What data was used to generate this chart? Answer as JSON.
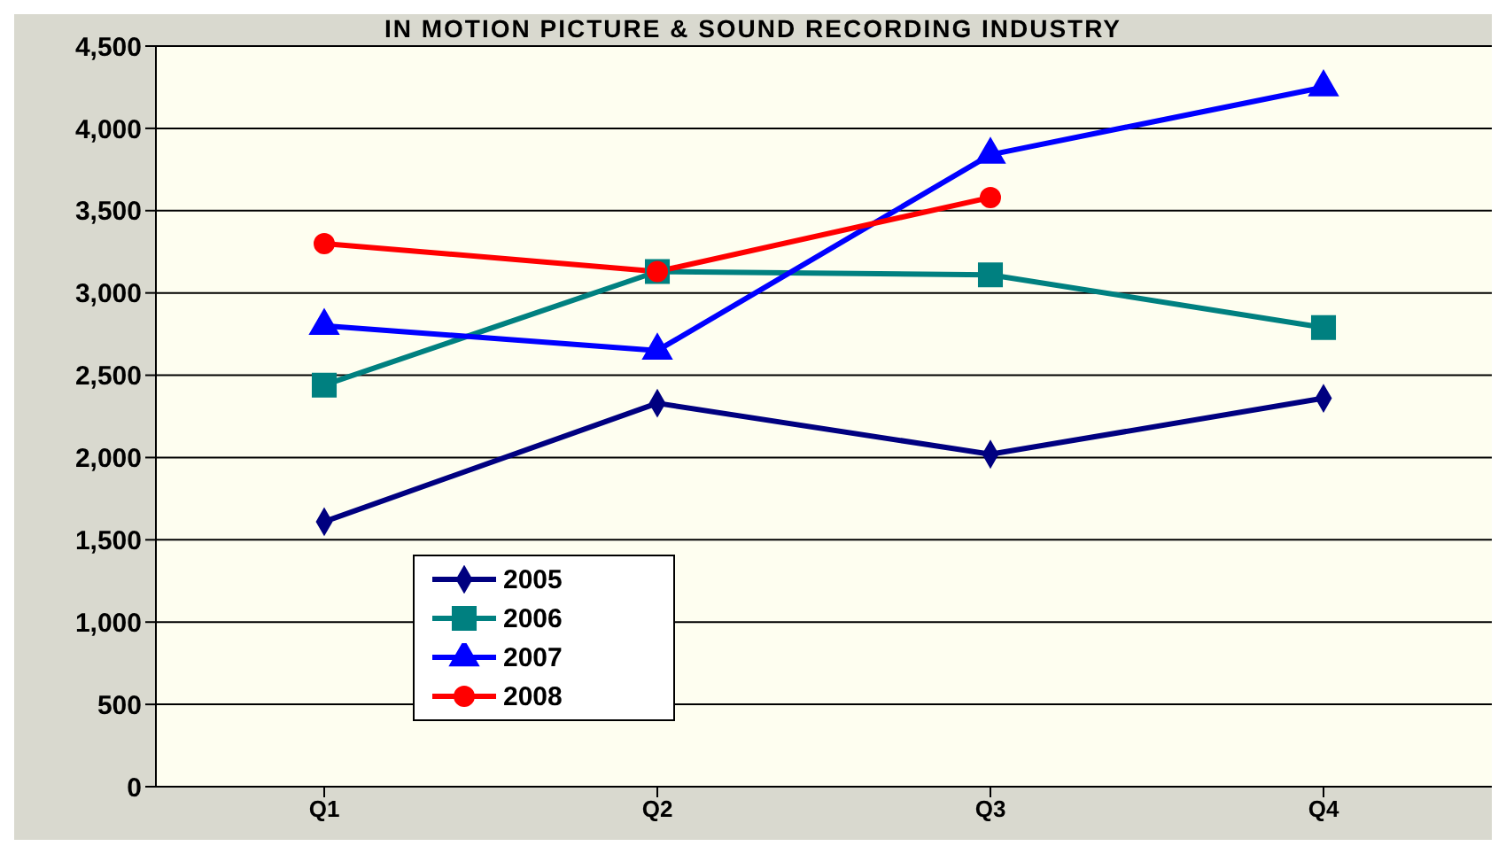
{
  "chart_data": {
    "type": "line",
    "title": "IN MOTION PICTURE & SOUND RECORDING INDUSTRY",
    "categories": [
      "Q1",
      "Q2",
      "Q3",
      "Q4"
    ],
    "series": [
      {
        "name": "2005",
        "color": "#000080",
        "marker": "diamond",
        "values": [
          1610,
          2330,
          2020,
          2360
        ]
      },
      {
        "name": "2006",
        "color": "#008080",
        "marker": "square",
        "values": [
          2440,
          3130,
          3110,
          2790
        ]
      },
      {
        "name": "2007",
        "color": "#0000ff",
        "marker": "triangle",
        "values": [
          2800,
          2650,
          3840,
          4250
        ]
      },
      {
        "name": "2008",
        "color": "#ff0000",
        "marker": "circle",
        "values": [
          3300,
          3130,
          3580,
          null
        ]
      }
    ],
    "ylim": [
      0,
      4500
    ],
    "yticks": [
      0,
      500,
      {
        "value": 1000,
        "label": "1,000"
      },
      {
        "value": 1500,
        "label": "1,500"
      },
      {
        "value": 2000,
        "label": "2,000"
      },
      {
        "value": 2500,
        "label": "2,500"
      },
      {
        "value": 3000,
        "label": "3,000"
      },
      {
        "value": 3500,
        "label": "3,500"
      },
      {
        "value": 4000,
        "label": "4,000"
      },
      {
        "value": 4500,
        "label": "4,500"
      }
    ],
    "grid": "y",
    "legend": "bottom left"
  }
}
